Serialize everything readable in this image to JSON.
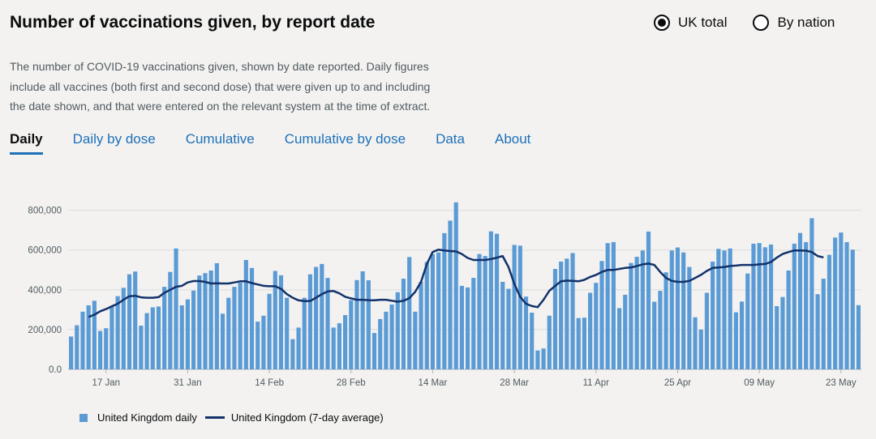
{
  "header": {
    "title": "Number of vaccinations given, by report date",
    "radio_uk": "UK total",
    "radio_nation": "By nation",
    "description": "The number of COVID-19 vaccinations given, shown by date reported. Daily figures include all vaccines (both first and second dose) that were given up to and including the date shown, and that were entered on the relevant system at the time of extract."
  },
  "tabs": [
    "Daily",
    "Daily by dose",
    "Cumulative",
    "Cumulative by dose",
    "Data",
    "About"
  ],
  "legend": {
    "daily": "United Kingdom daily",
    "average": "United Kingdom (7-day average)"
  },
  "colors": {
    "bar": "#5b9bd5",
    "line": "#12326b",
    "accent": "#1d70b8"
  },
  "chart_data": {
    "type": "bar",
    "start_date": "11 Jan",
    "y_ticks": [
      "0.0",
      "200,000",
      "400,000",
      "600,000",
      "800,000"
    ],
    "ylim": [
      0,
      880000
    ],
    "x_ticks": [
      {
        "label": "17 Jan",
        "index": 6
      },
      {
        "label": "31 Jan",
        "index": 20
      },
      {
        "label": "14 Feb",
        "index": 34
      },
      {
        "label": "28 Feb",
        "index": 48
      },
      {
        "label": "14 Mar",
        "index": 62
      },
      {
        "label": "28 Mar",
        "index": 76
      },
      {
        "label": "11 Apr",
        "index": 90
      },
      {
        "label": "25 Apr",
        "index": 104
      },
      {
        "label": "09 May",
        "index": 118
      },
      {
        "label": "23 May",
        "index": 132
      }
    ],
    "series": [
      {
        "name": "United Kingdom daily",
        "type": "bar",
        "values": [
          165000,
          222000,
          290000,
          322000,
          345000,
          193000,
          207000,
          320000,
          368000,
          410000,
          478000,
          492000,
          220000,
          283000,
          312000,
          316000,
          415000,
          490000,
          608000,
          322000,
          352000,
          396000,
          472000,
          484000,
          497000,
          534000,
          280000,
          360000,
          415000,
          436000,
          550000,
          510000,
          240000,
          270000,
          380000,
          495000,
          473000,
          360000,
          152000,
          210000,
          360000,
          478000,
          515000,
          530000,
          460000,
          210000,
          232000,
          273000,
          348000,
          449000,
          493000,
          448000,
          183000,
          253000,
          290000,
          326000,
          388000,
          456000,
          565000,
          290000,
          440000,
          540000,
          580000,
          588000,
          685000,
          748000,
          840000,
          420000,
          412000,
          460000,
          580000,
          570000,
          694000,
          682000,
          440000,
          405000,
          626000,
          622000,
          366000,
          285000,
          95000,
          105000,
          270000,
          505000,
          542000,
          557000,
          585000,
          258000,
          260000,
          385000,
          435000,
          545000,
          635000,
          640000,
          308000,
          375000,
          535000,
          566000,
          598000,
          693000,
          340000,
          395000,
          488000,
          598000,
          613000,
          588000,
          515000,
          262000,
          200000,
          385000,
          542000,
          606000,
          598000,
          608000,
          287000,
          341000,
          482000,
          632000,
          635000,
          614000,
          628000,
          318000,
          364000,
          497000,
          632000,
          686000,
          640000,
          760000,
          378000,
          456000,
          576000,
          663000,
          688000,
          640000,
          602000,
          323000
        ],
        "color": "#5b9bd5"
      },
      {
        "name": "United Kingdom (7-day average)",
        "type": "line",
        "start_index": 3,
        "values": [
          263000,
          275000,
          292000,
          303000,
          317000,
          330000,
          350000,
          368000,
          370000,
          362000,
          360000,
          360000,
          363000,
          385000,
          400000,
          415000,
          420000,
          437000,
          444000,
          444000,
          440000,
          432000,
          433000,
          432000,
          432000,
          437000,
          443000,
          443000,
          434000,
          427000,
          420000,
          418000,
          418000,
          405000,
          378000,
          360000,
          347000,
          343000,
          344000,
          360000,
          378000,
          392000,
          394000,
          382000,
          365000,
          357000,
          350000,
          350000,
          348000,
          347000,
          350000,
          350000,
          345000,
          340000,
          345000,
          358000,
          390000,
          440000,
          530000,
          590000,
          602000,
          598000,
          595000,
          593000,
          580000,
          560000,
          550000,
          550000,
          550000,
          555000,
          562000,
          570000,
          515000,
          430000,
          365000,
          330000,
          318000,
          313000,
          350000,
          395000,
          420000,
          443000,
          446000,
          445000,
          443000,
          450000,
          465000,
          475000,
          490000,
          500000,
          500000,
          505000,
          510000,
          512000,
          520000,
          528000,
          532000,
          525000,
          490000,
          460000,
          445000,
          440000,
          440000,
          445000,
          460000,
          475000,
          495000,
          510000,
          512000,
          515000,
          520000,
          522000,
          525000,
          525000,
          525000,
          528000,
          530000,
          540000,
          562000,
          580000,
          590000,
          598000,
          598000,
          597000,
          590000,
          570000,
          563000
        ]
      }
    ]
  }
}
